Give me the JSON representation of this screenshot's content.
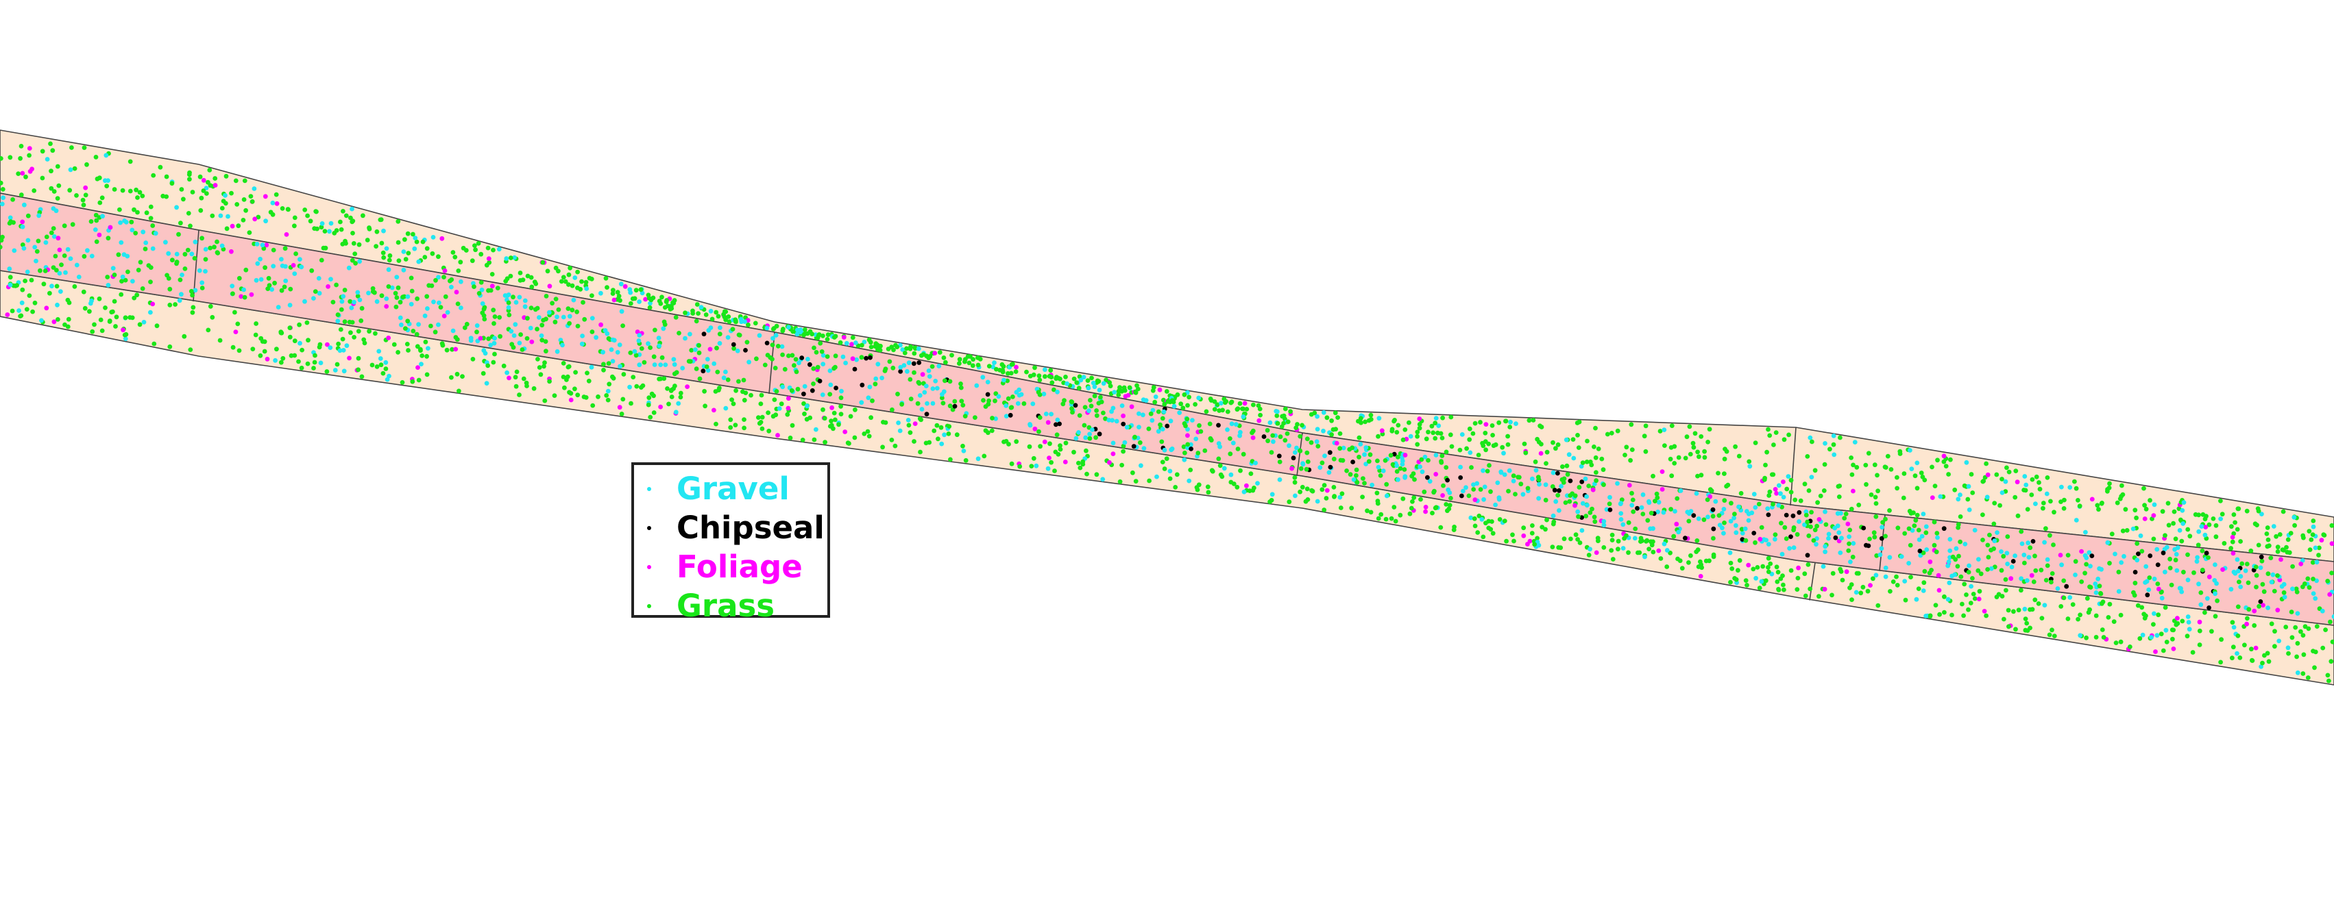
{
  "map": {
    "background_color": "#ffffff",
    "zone_colors": {
      "road_surface": "#fbc4c4",
      "shoulder": "#fde6d0",
      "outline": "#444444"
    }
  },
  "legend": {
    "items": [
      {
        "label": "Gravel",
        "color": "#22e6f2",
        "icon": "dot-marker"
      },
      {
        "label": "Chipseal",
        "color": "#000000",
        "icon": "dot-marker"
      },
      {
        "label": "Foliage",
        "color": "#ff00ff",
        "icon": "dot-marker"
      },
      {
        "label": "Grass",
        "color": "#19e619",
        "icon": "dot-marker"
      }
    ]
  }
}
